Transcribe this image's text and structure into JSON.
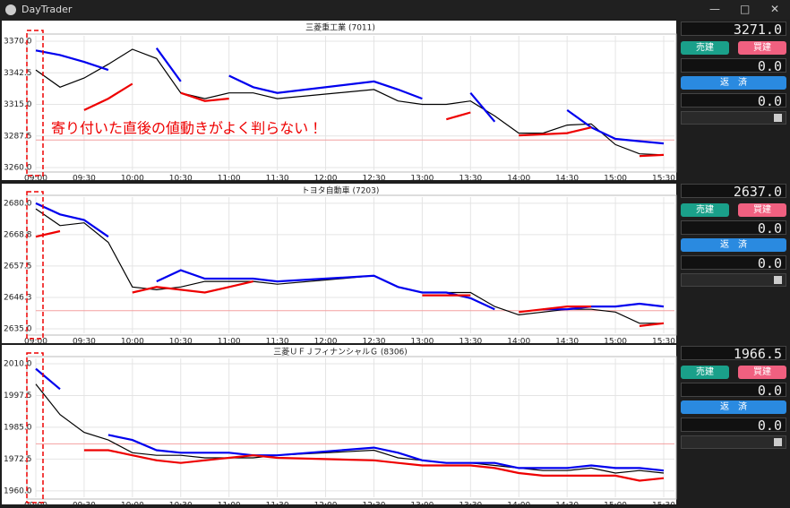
{
  "window": {
    "title": "DayTrader"
  },
  "charts": [
    {
      "title": "三菱重工業 (7011)",
      "annotation": "寄り付いた直後の値動きがよく判らない！",
      "ylim": [
        3257.7,
        3374.7
      ],
      "yticks": [
        {
          "value": 3370,
          "label": "3370.0"
        },
        {
          "value": 3342.5,
          "label": "3342.5"
        },
        {
          "value": 3315,
          "label": "3315.0"
        },
        {
          "value": 3287.5,
          "label": "3287.5"
        },
        {
          "value": 3260,
          "label": "3260.0"
        }
      ],
      "xticks": [
        "09:00",
        "09:30",
        "10:00",
        "10:30",
        "11:00",
        "11:30",
        "12:00",
        "12:30",
        "13:00",
        "13:30",
        "14:00",
        "14:30",
        "15:00",
        "15:30"
      ],
      "ref_line": 3284,
      "x": [
        "09:00",
        "09:15",
        "09:30",
        "09:45",
        "10:00",
        "10:15",
        "10:30",
        "10:45",
        "11:00",
        "11:15",
        "11:30",
        "12:30",
        "12:45",
        "13:00",
        "13:15",
        "13:30",
        "13:45",
        "14:00",
        "14:15",
        "14:30",
        "14:45",
        "15:00",
        "15:15",
        "15:30"
      ],
      "series": [
        {
          "color": "#000000",
          "values": [
            3345,
            3330,
            3338,
            3350,
            3363,
            3355,
            3325,
            3320,
            3325,
            3325,
            3320,
            3328,
            3318,
            3315,
            3315,
            3318,
            3305,
            3290,
            3290,
            3297,
            3298,
            3280,
            3272,
            3271
          ]
        },
        {
          "color": "#0000ee",
          "values": [
            3362,
            3358,
            3352,
            3345,
            null,
            3364,
            3335,
            null,
            3340,
            3330,
            3325,
            3335,
            3328,
            3320,
            null,
            3325,
            3300,
            null,
            null,
            3310,
            3295,
            3285,
            3283,
            3281
          ]
        },
        {
          "color": "#ee0000",
          "values": [
            3315,
            null,
            3310,
            3320,
            3333,
            null,
            3325,
            3318,
            3320,
            null,
            null,
            3312,
            null,
            null,
            3302,
            3308,
            null,
            3288,
            3289,
            3290,
            3295,
            null,
            3270,
            3271
          ]
        }
      ]
    },
    {
      "title": "トヨタ自動車 (7203)",
      "ylim": [
        2633.4,
        2682.2
      ],
      "yticks": [
        {
          "value": 2680,
          "label": "2680.0"
        },
        {
          "value": 2668.75,
          "label": "2668.8"
        },
        {
          "value": 2657.5,
          "label": "2657.5"
        },
        {
          "value": 2646.25,
          "label": "2646.3"
        },
        {
          "value": 2635,
          "label": "2635.0"
        }
      ],
      "xticks": [
        "09:00",
        "09:30",
        "10:00",
        "10:30",
        "11:00",
        "11:30",
        "12:00",
        "12:30",
        "13:00",
        "13:30",
        "14:00",
        "14:30",
        "15:00",
        "15:30"
      ],
      "ref_line": 2641.5,
      "x": [
        "09:00",
        "09:15",
        "09:30",
        "09:45",
        "10:00",
        "10:15",
        "10:30",
        "10:45",
        "11:00",
        "11:15",
        "11:30",
        "12:30",
        "12:45",
        "13:00",
        "13:15",
        "13:30",
        "13:45",
        "14:00",
        "14:15",
        "14:30",
        "14:45",
        "15:00",
        "15:15",
        "15:30"
      ],
      "series": [
        {
          "color": "#000000",
          "values": [
            2678,
            2672,
            2673,
            2666,
            2650,
            2649,
            2650,
            2652,
            2652,
            2652,
            2651,
            2654,
            2650,
            2648,
            2648,
            2648,
            2643,
            2640,
            2641,
            2642,
            2642,
            2641,
            2637,
            2637
          ]
        },
        {
          "color": "#0000ee",
          "values": [
            2680,
            2676,
            2674,
            2668,
            null,
            2652,
            2656,
            2653,
            2653,
            2653,
            2652,
            2654,
            2650,
            2648,
            2648,
            2646,
            2642,
            null,
            2642,
            2642,
            2643,
            2643,
            2644,
            2643
          ]
        },
        {
          "color": "#ee0000",
          "values": [
            2668,
            2670,
            null,
            null,
            2648,
            2650,
            2649,
            2648,
            2650,
            2652,
            null,
            2651,
            null,
            2647,
            2647,
            2647,
            null,
            2641,
            2642,
            2643,
            2643,
            null,
            2636,
            2637
          ]
        }
      ]
    },
    {
      "title": "三菱ＵＦＪフィナンシャルＧ (8306)",
      "ylim": [
        1957.5,
        2012.1
      ],
      "yticks": [
        {
          "value": 2010,
          "label": "2010.0"
        },
        {
          "value": 1997.5,
          "label": "1997.5"
        },
        {
          "value": 1985,
          "label": "1985.0"
        },
        {
          "value": 1972.5,
          "label": "1972.5"
        },
        {
          "value": 1960,
          "label": "1960.0"
        }
      ],
      "xticks": [
        "09:00",
        "09:30",
        "10:00",
        "10:30",
        "11:00",
        "11:30",
        "12:00",
        "12:30",
        "13:00",
        "13:30",
        "14:00",
        "14:30",
        "15:00",
        "15:30"
      ],
      "ref_line": 1978.5,
      "x": [
        "09:00",
        "09:15",
        "09:30",
        "09:45",
        "10:00",
        "10:15",
        "10:30",
        "10:45",
        "11:00",
        "11:15",
        "11:30",
        "12:30",
        "12:45",
        "13:00",
        "13:15",
        "13:30",
        "13:45",
        "14:00",
        "14:15",
        "14:30",
        "14:45",
        "15:00",
        "15:15",
        "15:30"
      ],
      "series": [
        {
          "color": "#000000",
          "values": [
            2002,
            1990,
            1983,
            1980,
            1975,
            1974,
            1974,
            1973,
            1973,
            1973,
            1974,
            1976,
            1973,
            1972,
            1971,
            1971,
            1970,
            1969,
            1968,
            1968,
            1969,
            1967,
            1968,
            1967
          ]
        },
        {
          "color": "#0000ee",
          "values": [
            2008,
            2000,
            null,
            1982,
            1980,
            1976,
            1975,
            1975,
            1975,
            1974,
            1974,
            1977,
            1975,
            1972,
            1971,
            1971,
            1971,
            1969,
            1969,
            1969,
            1970,
            1969,
            1969,
            1968
          ]
        },
        {
          "color": "#ee0000",
          "values": [
            null,
            null,
            1976,
            1976,
            1974,
            1972,
            1971,
            1972,
            1973,
            1974,
            1973,
            1972,
            1971,
            1970,
            1970,
            1970,
            1969,
            1967,
            1966,
            1966,
            1966,
            1966,
            1964,
            1965
          ]
        }
      ]
    }
  ],
  "panels": [
    {
      "price": "3271.0",
      "sell": "売建",
      "buy": "買建",
      "position": "0.0",
      "repay": "返　済",
      "profit": "0.0"
    },
    {
      "price": "2637.0",
      "sell": "売建",
      "buy": "買建",
      "position": "0.0",
      "repay": "返　済",
      "profit": "0.0"
    },
    {
      "price": "1966.5",
      "sell": "売建",
      "buy": "買建",
      "position": "0.0",
      "repay": "返　済",
      "profit": "0.0"
    }
  ]
}
